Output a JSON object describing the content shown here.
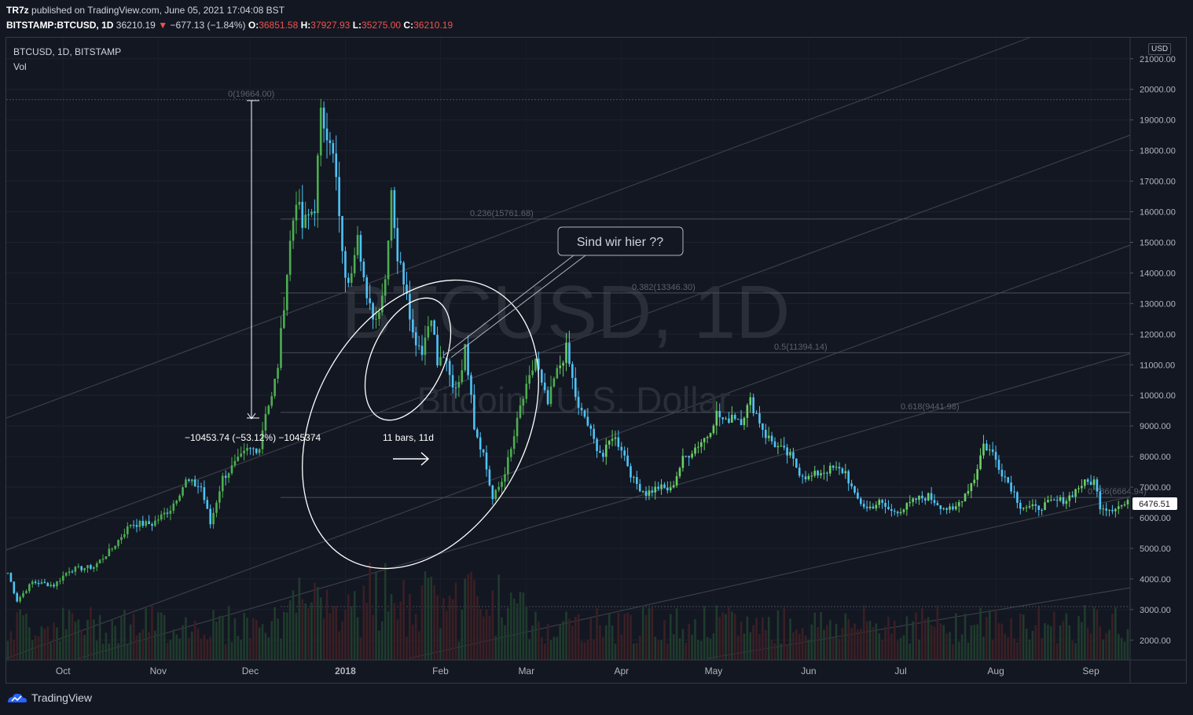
{
  "header": {
    "author": "TR7z",
    "published": "published on TradingView.com, June 05, 2021 17:04:08 BST",
    "symbol": "BITSTAMP:BTCUSD, 1D",
    "last": "36210.19",
    "change": "−677.13 (−1.84%)",
    "o_label": "O:",
    "o_value": "36851.58",
    "h_label": "H:",
    "h_value": "37927.93",
    "l_label": "L:",
    "l_value": "35275.00",
    "c_label": "C:",
    "c_value": "36210.19"
  },
  "pane": {
    "title": "BTCUSD, 1D, BITSTAMP",
    "volume_label": "Vol"
  },
  "watermark": {
    "main": "BTCUSD, 1D",
    "sub": "Bitcoin / U.S. Dollar"
  },
  "annotations": {
    "measure": "−10453.74 (−53.12%) −1045374",
    "bars": "11 bars, 11d",
    "callout": "Sind wir hier ??"
  },
  "fib_levels": [
    {
      "label": "0(19664.00)",
      "price": 19664
    },
    {
      "label": "0.236(15761.68)",
      "price": 15761.68
    },
    {
      "label": "0.382(13346.30)",
      "price": 13346.3
    },
    {
      "label": "0.5(11394.14)",
      "price": 11394.14
    },
    {
      "label": "0.618(9441.98)",
      "price": 9441.98
    },
    {
      "label": "0.786(6664.94)",
      "price": 6664.94
    },
    {
      "label": "",
      "price": 3100
    }
  ],
  "price_badge": "6476.51",
  "currency": "USD",
  "footer": {
    "brand": "TradingView"
  },
  "colors": {
    "up": "#26a69a",
    "up_bright": "#7cfc00",
    "down": "#4fc3f7",
    "bg": "#131722",
    "grid": "#1e222d",
    "text": "#b2b5be"
  },
  "chart_data": {
    "type": "candlestick",
    "xlabel": "",
    "ylabel": "",
    "ylim": [
      1500,
      21500
    ],
    "yticks": [
      21000,
      20000,
      19000,
      18000,
      17000,
      16000,
      15000,
      14000,
      13000,
      12000,
      11000,
      10000,
      9000,
      8000,
      7000,
      6000,
      5000,
      4000,
      3000,
      2000
    ],
    "ytick_labels": [
      "21000.00",
      "20000.00",
      "19000.00",
      "18000.00",
      "17000.00",
      "16000.00",
      "15000.00",
      "14000.00",
      "13000.00",
      "12000.00",
      "11000.00",
      "10000.00",
      "9000.00",
      "8000.00",
      "7000.00",
      "6000.00",
      "5000.00",
      "4000.00",
      "3000.00",
      "2000.00"
    ],
    "xticks": [
      "Oct",
      "Nov",
      "Dec",
      "2018",
      "Feb",
      "Mar",
      "Apr",
      "May",
      "Jun",
      "Jul",
      "Aug",
      "Sep"
    ],
    "xtick_day_index": [
      18,
      49,
      79,
      110,
      141,
      169,
      200,
      230,
      261,
      291,
      322,
      353
    ],
    "anchors": [
      [
        0,
        4200
      ],
      [
        3,
        3300
      ],
      [
        8,
        3900
      ],
      [
        15,
        3800
      ],
      [
        20,
        4300
      ],
      [
        28,
        4400
      ],
      [
        34,
        5000
      ],
      [
        40,
        5800
      ],
      [
        47,
        5800
      ],
      [
        53,
        6300
      ],
      [
        58,
        7200
      ],
      [
        63,
        7000
      ],
      [
        66,
        5800
      ],
      [
        70,
        7300
      ],
      [
        78,
        8200
      ],
      [
        82,
        8300
      ],
      [
        84,
        9500
      ],
      [
        86,
        9900
      ],
      [
        88,
        11000
      ],
      [
        92,
        15000
      ],
      [
        94,
        16500
      ],
      [
        96,
        15500
      ],
      [
        100,
        16200
      ],
      [
        102,
        19100
      ],
      [
        105,
        18500
      ],
      [
        107,
        17000
      ],
      [
        109,
        14500
      ],
      [
        111,
        13500
      ],
      [
        114,
        15500
      ],
      [
        117,
        13000
      ],
      [
        120,
        12500
      ],
      [
        123,
        13800
      ],
      [
        125,
        16800
      ],
      [
        127,
        14500
      ],
      [
        130,
        13500
      ],
      [
        132,
        12000
      ],
      [
        135,
        11500
      ],
      [
        138,
        12700
      ],
      [
        140,
        11000
      ],
      [
        142,
        11300
      ],
      [
        145,
        10200
      ],
      [
        147,
        10500
      ],
      [
        149,
        11500
      ],
      [
        151,
        10200
      ],
      [
        152,
        9000
      ],
      [
        155,
        8100
      ],
      [
        158,
        6600
      ],
      [
        161,
        7200
      ],
      [
        164,
        8200
      ],
      [
        167,
        9600
      ],
      [
        170,
        10500
      ],
      [
        172,
        11200
      ],
      [
        174,
        10300
      ],
      [
        176,
        9700
      ],
      [
        178,
        10500
      ],
      [
        180,
        11000
      ],
      [
        182,
        11500
      ],
      [
        186,
        9500
      ],
      [
        188,
        9300
      ],
      [
        191,
        8500
      ],
      [
        194,
        8000
      ],
      [
        197,
        8700
      ],
      [
        200,
        8300
      ],
      [
        204,
        7200
      ],
      [
        208,
        6800
      ],
      [
        212,
        7000
      ],
      [
        216,
        6900
      ],
      [
        220,
        7900
      ],
      [
        224,
        8300
      ],
      [
        228,
        8700
      ],
      [
        231,
        9400
      ],
      [
        234,
        9100
      ],
      [
        236,
        9400
      ],
      [
        239,
        9200
      ],
      [
        242,
        9800
      ],
      [
        244,
        9400
      ],
      [
        247,
        8700
      ],
      [
        251,
        8300
      ],
      [
        255,
        8000
      ],
      [
        258,
        7500
      ],
      [
        261,
        7300
      ],
      [
        265,
        7500
      ],
      [
        269,
        7600
      ],
      [
        273,
        7500
      ],
      [
        276,
        6700
      ],
      [
        280,
        6300
      ],
      [
        284,
        6500
      ],
      [
        288,
        6200
      ],
      [
        292,
        6300
      ],
      [
        296,
        6600
      ],
      [
        300,
        6700
      ],
      [
        304,
        6400
      ],
      [
        308,
        6200
      ],
      [
        312,
        6800
      ],
      [
        315,
        7300
      ],
      [
        318,
        8400
      ],
      [
        321,
        8100
      ],
      [
        324,
        7500
      ],
      [
        327,
        7000
      ],
      [
        330,
        6400
      ],
      [
        335,
        6300
      ],
      [
        340,
        6500
      ],
      [
        345,
        6600
      ],
      [
        350,
        7100
      ],
      [
        354,
        7200
      ],
      [
        356,
        6400
      ],
      [
        359,
        6300
      ],
      [
        363,
        6400
      ],
      [
        366,
        6500
      ]
    ]
  }
}
